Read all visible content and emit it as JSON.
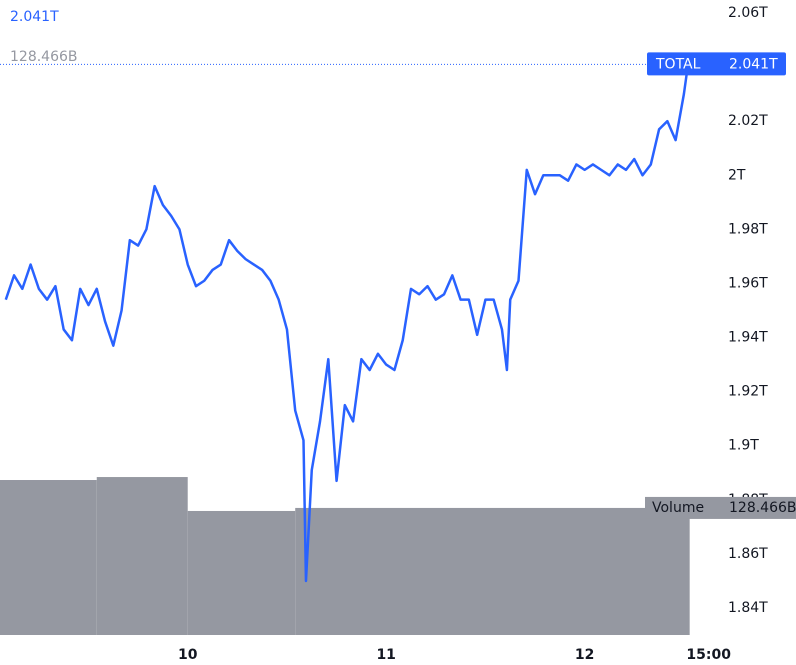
{
  "chart_data": {
    "type": "line",
    "grid": false,
    "xlim": [
      1.3,
      87.4
    ],
    "xticks": [
      {
        "value": 24,
        "label": "10"
      },
      {
        "value": 48,
        "label": "11"
      },
      {
        "value": 72,
        "label": "12"
      },
      {
        "value": 87,
        "label": "15:00"
      }
    ],
    "ylim": [
      1.84,
      2.06
    ],
    "yticks": [
      {
        "value": 1.84,
        "label": "1.84T"
      },
      {
        "value": 1.86,
        "label": "1.86T"
      },
      {
        "value": 1.88,
        "label": "1.88T"
      },
      {
        "value": 1.9,
        "label": "1.9T"
      },
      {
        "value": 1.92,
        "label": "1.92T"
      },
      {
        "value": 1.94,
        "label": "1.94T"
      },
      {
        "value": 1.96,
        "label": "1.96T"
      },
      {
        "value": 1.98,
        "label": "1.98T"
      },
      {
        "value": 2,
        "label": "2T"
      },
      {
        "value": 2.02,
        "label": "2.02T"
      },
      {
        "value": 2.04,
        "label": "2.04T"
      },
      {
        "value": 2.06,
        "label": "2.06T"
      }
    ],
    "series": [
      {
        "name": "TOTAL",
        "color": "#2962ff",
        "last_label": "2.041T",
        "x": [
          2,
          3,
          4,
          5,
          6,
          7,
          8,
          9,
          10,
          11,
          12,
          13,
          14,
          15,
          16,
          17,
          18,
          19,
          20,
          21,
          22,
          23,
          24,
          25,
          26,
          27,
          28,
          29,
          30,
          31,
          32,
          33,
          34,
          35,
          36,
          37,
          38,
          38.3,
          39,
          40,
          41,
          42,
          43,
          44,
          45,
          46,
          47,
          48,
          49,
          50,
          51,
          52,
          53,
          54,
          55,
          56,
          57,
          58,
          59,
          60,
          61,
          62,
          62.6,
          63,
          64,
          65,
          66,
          67,
          68,
          69,
          70,
          71,
          72,
          73,
          74,
          75,
          76,
          77,
          78,
          79,
          80,
          81,
          82,
          83,
          84,
          84.5
        ],
        "values": [
          1.954,
          1.963,
          1.958,
          1.967,
          1.958,
          1.954,
          1.959,
          1.943,
          1.939,
          1.958,
          1.952,
          1.958,
          1.946,
          1.937,
          1.95,
          1.976,
          1.974,
          1.98,
          1.996,
          1.989,
          1.985,
          1.98,
          1.967,
          1.959,
          1.961,
          1.965,
          1.967,
          1.976,
          1.972,
          1.969,
          1.967,
          1.965,
          1.961,
          1.954,
          1.943,
          1.913,
          1.902,
          1.85,
          1.891,
          1.909,
          1.932,
          1.887,
          1.915,
          1.909,
          1.932,
          1.928,
          1.934,
          1.93,
          1.928,
          1.939,
          1.958,
          1.956,
          1.959,
          1.954,
          1.956,
          1.963,
          1.954,
          1.954,
          1.941,
          1.954,
          1.954,
          1.943,
          1.928,
          1.954,
          1.961,
          2.002,
          1.993,
          2,
          2,
          2,
          1.998,
          2.004,
          2.002,
          2.004,
          2.002,
          2,
          2.004,
          2.002,
          2.006,
          2,
          2.004,
          2.017,
          2.02,
          2.013,
          2.03,
          2.041
        ]
      }
    ],
    "volume": {
      "name": "Volume",
      "color": "#9598a1",
      "last_label": "128.466B",
      "ylim": [
        0,
        642
      ],
      "bins": [
        1.3,
        13,
        24,
        37,
        84.7
      ],
      "values": [
        156.7,
        159.7,
        125.4,
        128.466
      ]
    }
  }
}
